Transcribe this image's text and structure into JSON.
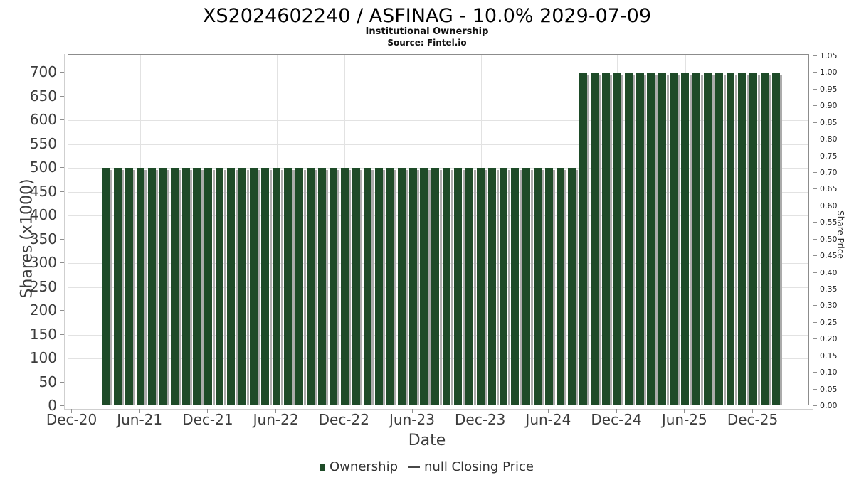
{
  "header": {
    "title": "XS2024602240 / ASFINAG - 10.0% 2029-07-09",
    "subtitle": "Institutional Ownership",
    "source": "Source: Fintel.io"
  },
  "axes": {
    "x": {
      "label": "Date",
      "tick_labels": [
        "Dec-20",
        "Jun-21",
        "Dec-21",
        "Jun-22",
        "Dec-22",
        "Jun-23",
        "Dec-23",
        "Jun-24",
        "Dec-24",
        "Jun-25",
        "Dec-25"
      ]
    },
    "y_left": {
      "label": "Shares (x1000)",
      "tick_labels": [
        "0",
        "50",
        "100",
        "150",
        "200",
        "250",
        "300",
        "350",
        "400",
        "450",
        "500",
        "550",
        "600",
        "650",
        "700"
      ]
    },
    "y_right": {
      "label": "Share Price",
      "tick_labels": [
        "0.00",
        "0.05",
        "0.10",
        "0.15",
        "0.20",
        "0.25",
        "0.30",
        "0.35",
        "0.40",
        "0.45",
        "0.50",
        "0.55",
        "0.60",
        "0.65",
        "0.70",
        "0.75",
        "0.80",
        "0.85",
        "0.90",
        "0.95",
        "1.00",
        "1.05"
      ]
    }
  },
  "legend": {
    "items": [
      {
        "label": "Ownership",
        "marker": "square",
        "color": "#1e4b28"
      },
      {
        "label": "null Closing Price",
        "marker": "line",
        "color": "#474747"
      }
    ]
  },
  "colors": {
    "bar": "#1e4b28",
    "bar_shadow": "#ababab",
    "gridline": "#e2e2e2",
    "plot_border": "#8c8c8c"
  },
  "chart_data": {
    "type": "bar",
    "title": "XS2024602240 / ASFINAG - 10.0% 2029-07-09",
    "subtitle": "Institutional Ownership",
    "source": "Source: Fintel.io",
    "xlabel": "Date",
    "ylabel": "Shares (x1000)",
    "ylabel_right": "Share Price",
    "x_tick_labels": [
      "Dec-20",
      "Jun-21",
      "Dec-21",
      "Jun-22",
      "Dec-22",
      "Jun-23",
      "Dec-23",
      "Jun-24",
      "Dec-24",
      "Jun-25",
      "Dec-25"
    ],
    "ylim_left": [
      0,
      739
    ],
    "ylim_right": [
      0,
      1.057
    ],
    "y_left_ticks": [
      0,
      50,
      100,
      150,
      200,
      250,
      300,
      350,
      400,
      450,
      500,
      550,
      600,
      650,
      700
    ],
    "y_right_ticks": [
      0.0,
      0.05,
      0.1,
      0.15,
      0.2,
      0.25,
      0.3,
      0.35,
      0.4,
      0.45,
      0.5,
      0.55,
      0.6,
      0.65,
      0.7,
      0.75,
      0.8,
      0.85,
      0.9,
      0.95,
      1.0,
      1.05
    ],
    "grid": true,
    "legend_position": "bottom",
    "categories": [
      "Mar-21",
      "Apr-21",
      "May-21",
      "Jun-21",
      "Jul-21",
      "Aug-21",
      "Sep-21",
      "Oct-21",
      "Nov-21",
      "Dec-21",
      "Jan-22",
      "Feb-22",
      "Mar-22",
      "Apr-22",
      "May-22",
      "Jun-22",
      "Jul-22",
      "Aug-22",
      "Sep-22",
      "Oct-22",
      "Nov-22",
      "Dec-22",
      "Jan-23",
      "Feb-23",
      "Mar-23",
      "Apr-23",
      "May-23",
      "Jun-23",
      "Jul-23",
      "Aug-23",
      "Sep-23",
      "Oct-23",
      "Nov-23",
      "Dec-23",
      "Jan-24",
      "Feb-24",
      "Mar-24",
      "Apr-24",
      "May-24",
      "Jun-24",
      "Jul-24",
      "Aug-24",
      "Sep-24",
      "Oct-24",
      "Nov-24",
      "Dec-24",
      "Jan-25",
      "Feb-25",
      "Mar-25",
      "Apr-25",
      "May-25",
      "Jun-25",
      "Jul-25",
      "Aug-25",
      "Sep-25",
      "Oct-25",
      "Nov-25",
      "Dec-25",
      "Jan-26",
      "Feb-26"
    ],
    "series": [
      {
        "name": "Ownership",
        "type": "bar",
        "color": "#1e4b28",
        "values": [
          500,
          500,
          500,
          500,
          500,
          500,
          500,
          500,
          500,
          500,
          500,
          500,
          500,
          500,
          500,
          500,
          500,
          500,
          500,
          500,
          500,
          500,
          500,
          500,
          500,
          500,
          500,
          500,
          500,
          500,
          500,
          500,
          500,
          500,
          500,
          500,
          500,
          500,
          500,
          500,
          500,
          500,
          700,
          700,
          700,
          700,
          700,
          700,
          700,
          700,
          700,
          700,
          700,
          700,
          700,
          700,
          700,
          700,
          700,
          700
        ]
      },
      {
        "name": "null Closing Price",
        "type": "line",
        "color": "#474747",
        "values": []
      }
    ]
  }
}
